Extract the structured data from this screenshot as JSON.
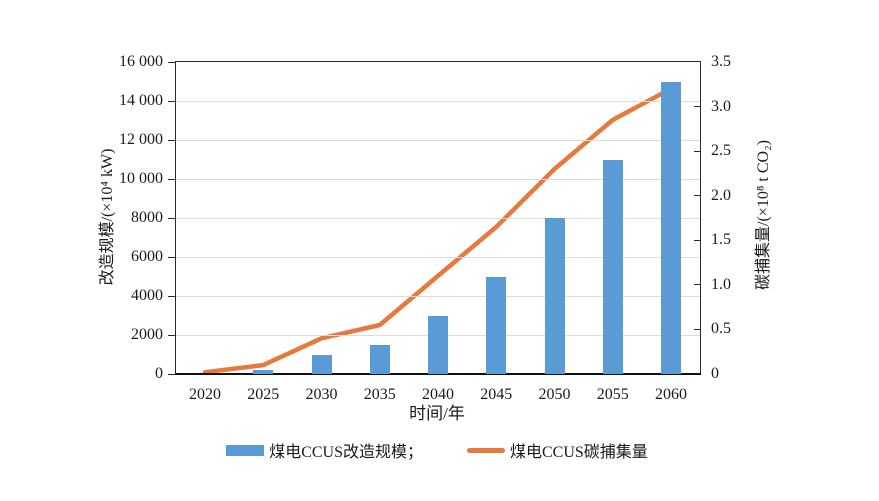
{
  "chart_data": {
    "type": "combo",
    "categories": [
      "2020",
      "2025",
      "2030",
      "2035",
      "2040",
      "2045",
      "2050",
      "2055",
      "2060"
    ],
    "series": [
      {
        "name": "煤电CCUS改造规模",
        "kind": "bar",
        "axis": "left",
        "color": "#5B9BD5",
        "values": [
          0,
          200,
          1000,
          1500,
          3000,
          5000,
          8000,
          11000,
          15000
        ]
      },
      {
        "name": "煤电CCUS碳捕集量",
        "kind": "line",
        "axis": "right",
        "color": "#E57A3C",
        "values": [
          0.02,
          0.1,
          0.4,
          0.55,
          1.1,
          1.65,
          2.3,
          2.85,
          3.2
        ]
      }
    ],
    "title": "",
    "xlabel": "时间/年",
    "ylabel_left": "改造规模/(×10⁴ kW)",
    "ylabel_right": "碳捕集量/(×10⁸ t CO₂)",
    "ylim_left": [
      0,
      16000
    ],
    "ylim_right": [
      0,
      3.5
    ],
    "left_tick_labels": [
      "0",
      "2000",
      "4000",
      "6000",
      "8000",
      "10 000",
      "12 000",
      "14 000",
      "16 000"
    ],
    "right_tick_labels": [
      "0",
      "0.5",
      "1.0",
      "1.5",
      "2.0",
      "2.5",
      "3.0",
      "3.5"
    ],
    "grid": true,
    "legend_position": "bottom"
  },
  "legend": {
    "bar_label": "煤电CCUS改造规模；",
    "line_label": "煤电CCUS碳捕集量"
  },
  "colors": {
    "bar": "#5B9BD5",
    "line": "#E57A3C",
    "grid": "#DCDCDC",
    "axis": "#2B2B2B",
    "text": "#1A1A1A"
  }
}
